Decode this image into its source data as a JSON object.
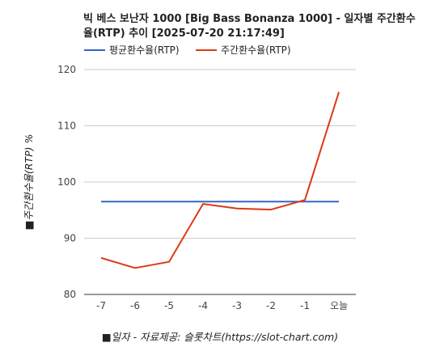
{
  "chart_data": {
    "type": "line",
    "title_lines": [
      "빅 베스 보난자 1000 [Big Bass Bonanza 1000] - 일자별 주간환수",
      "율(RTP) 추이 [2025-07-20 21:17:49]"
    ],
    "xlabel": "■일자 - 자료제공: 슬롯차트(https://slot-chart.com)",
    "ylabel": "■주간환수율(RTP) %",
    "categories": [
      "-7",
      "-6",
      "-5",
      "-4",
      "-3",
      "-2",
      "-1",
      "오늘"
    ],
    "yticks": [
      "80",
      "90",
      "100",
      "110",
      "120"
    ],
    "ylim": [
      80,
      120
    ],
    "grid": true,
    "legend_position": "top-left",
    "series": [
      {
        "name": "평균환수율(RTP)",
        "color": "#3366cc",
        "values": [
          96.5,
          96.5,
          96.5,
          96.5,
          96.5,
          96.5,
          96.5,
          96.5
        ]
      },
      {
        "name": "주간환수율(RTP)",
        "color": "#dc3912",
        "values": [
          86.5,
          84.7,
          85.8,
          96.1,
          95.3,
          95.1,
          96.8,
          116.0
        ]
      }
    ]
  }
}
